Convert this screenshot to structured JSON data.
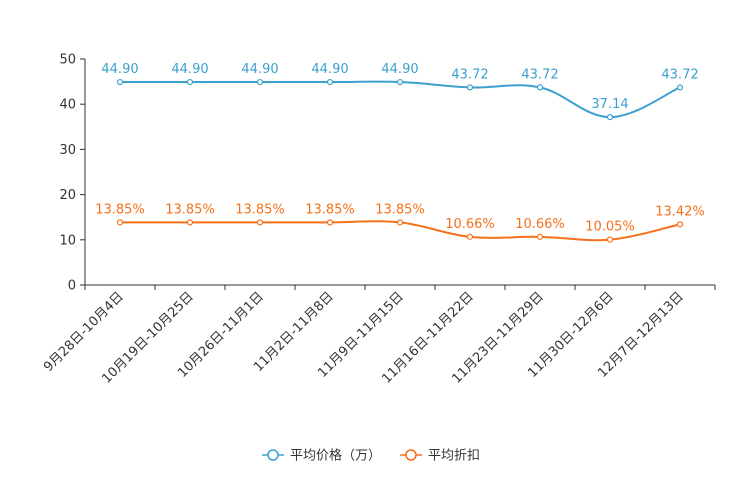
{
  "chart_data": {
    "type": "line",
    "categories": [
      "9月28日-10月4日",
      "10月19日-10月25日",
      "10月26日-11月1日",
      "11月2日-11月8日",
      "11月9日-11月15日",
      "11月16日-11月22日",
      "11月23日-11月29日",
      "11月30日-12月6日",
      "12月7日-12月13日"
    ],
    "ylim": [
      0,
      50
    ],
    "yticks": [
      0,
      10,
      20,
      30,
      40,
      50
    ],
    "series": [
      {
        "name": "平均价格（万）",
        "color": "#3ba0cf",
        "values": [
          44.9,
          44.9,
          44.9,
          44.9,
          44.9,
          43.72,
          43.72,
          37.14,
          43.72
        ],
        "labels": [
          "44.90",
          "44.90",
          "44.90",
          "44.90",
          "44.90",
          "43.72",
          "43.72",
          "37.14",
          "43.72"
        ]
      },
      {
        "name": "平均折扣",
        "color": "#f5701a",
        "values": [
          13.85,
          13.85,
          13.85,
          13.85,
          13.85,
          10.66,
          10.66,
          10.05,
          13.42
        ],
        "labels": [
          "13.85%",
          "13.85%",
          "13.85%",
          "13.85%",
          "13.85%",
          "10.66%",
          "10.66%",
          "10.05%",
          "13.42%"
        ]
      }
    ],
    "grid": false,
    "legend": "bottom-center"
  }
}
